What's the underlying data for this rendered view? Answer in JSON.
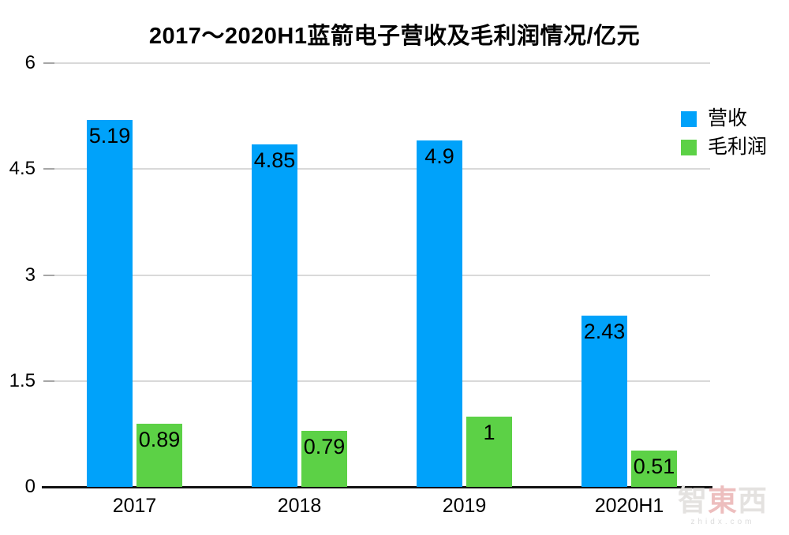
{
  "title": "2017～2020H1蓝箭电子营收及毛利润情况/亿元",
  "chart_data": {
    "type": "bar",
    "title": "2017～2020H1蓝箭电子营收及毛利润情况/亿元",
    "categories": [
      "2017",
      "2018",
      "2019",
      "2020H1"
    ],
    "series": [
      {
        "name": "营收",
        "color": "#00a2fa",
        "values": [
          5.19,
          4.85,
          4.9,
          2.43
        ],
        "value_labels": [
          "5.19",
          "4.85",
          "4.9",
          "2.43"
        ]
      },
      {
        "name": "毛利润",
        "color": "#5cd146",
        "values": [
          0.89,
          0.79,
          1,
          0.51
        ],
        "value_labels": [
          "0.89",
          "0.79",
          "1",
          "0.51"
        ]
      }
    ],
    "xlabel": "",
    "ylabel": "",
    "ylim": [
      0,
      6
    ],
    "yticks": [
      0,
      1.5,
      3,
      4.5,
      6
    ],
    "ytick_labels": [
      "0",
      "1.5",
      "3",
      "4.5",
      "6"
    ],
    "grid": true,
    "legend_position": "top-right"
  },
  "colors": {
    "revenue_blue": "#00a2fa",
    "profit_green": "#5cd146",
    "gridline": "#d9d9d9",
    "axis": "#111111",
    "text": "#000000"
  },
  "watermark": {
    "chars": [
      "智",
      "東",
      "西"
    ],
    "site": "zhidx.com"
  }
}
